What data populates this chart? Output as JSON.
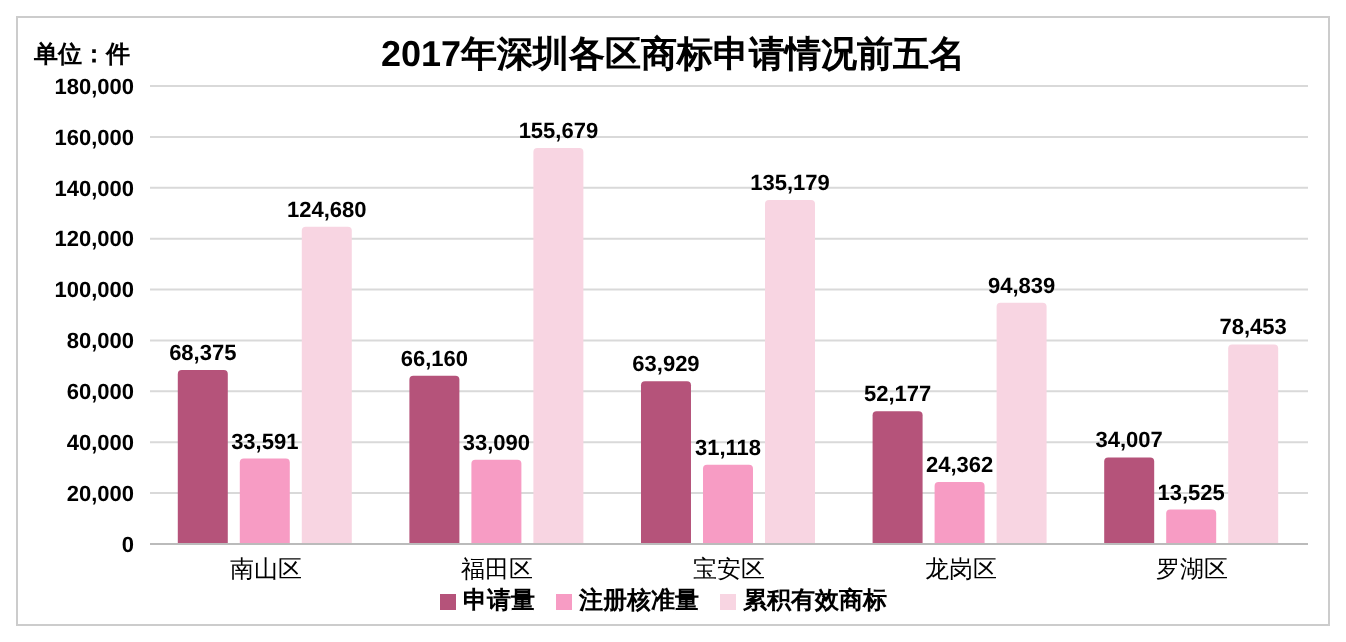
{
  "chart_data": {
    "type": "bar",
    "title": "2017年深圳各区商标申请情况前五名",
    "ylabel": "单位：件",
    "categories": [
      "南山区",
      "福田区",
      "宝安区",
      "龙岗区",
      "罗湖区"
    ],
    "series": [
      {
        "name": "申请量",
        "color": "#b5537a",
        "values": [
          68375,
          66160,
          63929,
          52177,
          34007
        ],
        "value_labels": [
          "68,375",
          "66,160",
          "63,929",
          "52,177",
          "34,007"
        ]
      },
      {
        "name": "注册核准量",
        "color": "#f79cc4",
        "values": [
          33591,
          33090,
          31118,
          24362,
          13525
        ],
        "value_labels": [
          "33,591",
          "33,090",
          "31,118",
          "24,362",
          "13,525"
        ]
      },
      {
        "name": "累积有效商标",
        "color": "#f8d5e2",
        "values": [
          124680,
          155679,
          135179,
          94839,
          78453
        ],
        "value_labels": [
          "124,680",
          "155,679",
          "135,179",
          "94,839",
          "78,453"
        ]
      }
    ],
    "ylim": [
      0,
      180000
    ],
    "yticks": [
      0,
      {
        "value": 20000,
        "label": "20,000"
      },
      {
        "value": 40000,
        "label": "40,000"
      },
      {
        "value": 60000,
        "label": "60,000"
      },
      {
        "value": 80000,
        "label": "80,000"
      },
      {
        "value": 100000,
        "label": "100,000"
      },
      {
        "value": 120000,
        "label": "120,000"
      },
      {
        "value": 140000,
        "label": "140,000"
      },
      {
        "value": 160000,
        "label": "160,000"
      },
      {
        "value": 180000,
        "label": "180,000"
      }
    ],
    "grid": "y",
    "legend": "bottom"
  }
}
